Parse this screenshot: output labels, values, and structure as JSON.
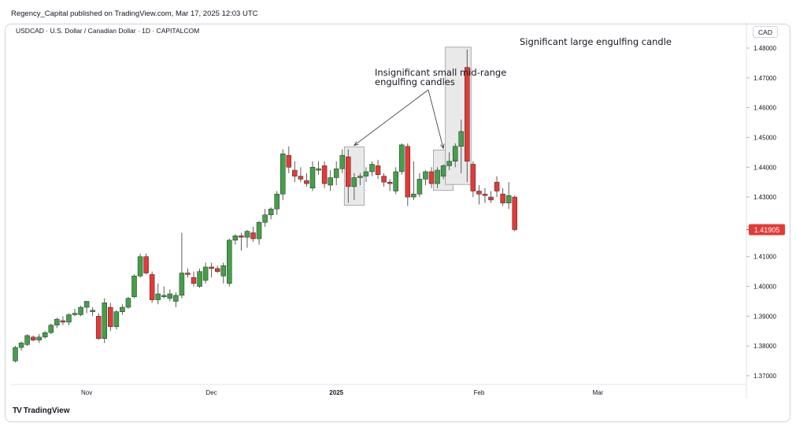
{
  "header": {
    "publisher": "Regency_Capital published on TradingView.com, Mar 17, 2025 12:03 UTC",
    "symbol": "USDCAD · U.S. Dollar / Canadian Dollar · 1D · CAPITALCOM",
    "currency": "CAD"
  },
  "footer": {
    "brand": "TradingView",
    "logo": "TV"
  },
  "colors": {
    "up": "#22ab94",
    "up_fill": "#43a047",
    "down": "#e53935",
    "wick": "#555555"
  },
  "chart_data": {
    "type": "candlestick",
    "title": "USDCAD · U.S. Dollar / Canadian Dollar · 1D · CAPITALCOM",
    "ylim": [
      1.3665,
      1.4835
    ],
    "y_ticks": [
      "1.37000",
      "1.38000",
      "1.39000",
      "1.40000",
      "1.41000",
      "1.42000",
      "1.43000",
      "1.44000",
      "1.45000",
      "1.46000",
      "1.47000",
      "1.48000"
    ],
    "x_labels": [
      {
        "label": "Nov",
        "index": 12
      },
      {
        "label": "Dec",
        "index": 33
      },
      {
        "label": "2025",
        "index": 54
      },
      {
        "label": "Feb",
        "index": 78
      },
      {
        "label": "Mar",
        "index": 98
      }
    ],
    "current_price": "1.41905",
    "current_value": 1.41905,
    "candles": [
      [
        1.375,
        1.38,
        1.3745,
        1.3795
      ],
      [
        1.3795,
        1.3815,
        1.3785,
        1.381
      ],
      [
        1.3805,
        1.384,
        1.38,
        1.3835
      ],
      [
        1.383,
        1.3835,
        1.3815,
        1.382
      ],
      [
        1.382,
        1.384,
        1.381,
        1.383
      ],
      [
        1.383,
        1.385,
        1.3825,
        1.3845
      ],
      [
        1.3845,
        1.3875,
        1.384,
        1.387
      ],
      [
        1.387,
        1.3895,
        1.386,
        1.389
      ],
      [
        1.3885,
        1.39,
        1.387,
        1.388
      ],
      [
        1.388,
        1.391,
        1.387,
        1.3905
      ],
      [
        1.3905,
        1.3925,
        1.39,
        1.391
      ],
      [
        1.3905,
        1.3935,
        1.39,
        1.393
      ],
      [
        1.393,
        1.3945,
        1.391,
        1.395
      ],
      [
        1.3915,
        1.393,
        1.39,
        1.392
      ],
      [
        1.39,
        1.391,
        1.382,
        1.3825
      ],
      [
        1.3825,
        1.396,
        1.381,
        1.3945
      ],
      [
        1.393,
        1.3945,
        1.385,
        1.3865
      ],
      [
        1.3865,
        1.392,
        1.3855,
        1.3915
      ],
      [
        1.3915,
        1.394,
        1.3905,
        1.393
      ],
      [
        1.393,
        1.3965,
        1.3925,
        1.396
      ],
      [
        1.3965,
        1.404,
        1.396,
        1.4035
      ],
      [
        1.4035,
        1.411,
        1.403,
        1.41
      ],
      [
        1.41,
        1.411,
        1.404,
        1.4045
      ],
      [
        1.404,
        1.405,
        1.3945,
        1.3955
      ],
      [
        1.3955,
        1.401,
        1.394,
        1.3975
      ],
      [
        1.3965,
        1.4,
        1.396,
        1.397
      ],
      [
        1.396,
        1.399,
        1.395,
        1.3975
      ],
      [
        1.395,
        1.398,
        1.393,
        1.397
      ],
      [
        1.397,
        1.418,
        1.396,
        1.4045
      ],
      [
        1.4045,
        1.406,
        1.403,
        1.404
      ],
      [
        1.403,
        1.405,
        1.4,
        1.401
      ],
      [
        1.4,
        1.406,
        1.3995,
        1.405
      ],
      [
        1.402,
        1.408,
        1.401,
        1.4065
      ],
      [
        1.4065,
        1.408,
        1.403,
        1.406
      ],
      [
        1.406,
        1.407,
        1.4045,
        1.405
      ],
      [
        1.4035,
        1.408,
        1.401,
        1.407
      ],
      [
        1.401,
        1.416,
        1.4,
        1.4155
      ],
      [
        1.4155,
        1.4175,
        1.414,
        1.417
      ],
      [
        1.417,
        1.418,
        1.412,
        1.4165
      ],
      [
        1.4165,
        1.419,
        1.413,
        1.4185
      ],
      [
        1.418,
        1.42,
        1.415,
        1.416
      ],
      [
        1.416,
        1.422,
        1.414,
        1.4215
      ],
      [
        1.4215,
        1.426,
        1.42,
        1.424
      ],
      [
        1.424,
        1.4265,
        1.4225,
        1.426
      ],
      [
        1.426,
        1.432,
        1.424,
        1.431
      ],
      [
        1.431,
        1.446,
        1.429,
        1.4445
      ],
      [
        1.444,
        1.447,
        1.438,
        1.44
      ],
      [
        1.439,
        1.442,
        1.435,
        1.437
      ],
      [
        1.437,
        1.44,
        1.435,
        1.436
      ],
      [
        1.4355,
        1.438,
        1.4335,
        1.4345
      ],
      [
        1.433,
        1.442,
        1.432,
        1.44
      ],
      [
        1.439,
        1.442,
        1.4375,
        1.4395
      ],
      [
        1.4405,
        1.442,
        1.433,
        1.4345
      ],
      [
        1.434,
        1.439,
        1.432,
        1.4365
      ],
      [
        1.4365,
        1.442,
        1.434,
        1.4395
      ],
      [
        1.4395,
        1.446,
        1.438,
        1.444
      ],
      [
        1.4435,
        1.446,
        1.428,
        1.4335
      ],
      [
        1.4335,
        1.438,
        1.429,
        1.4365
      ],
      [
        1.4365,
        1.438,
        1.434,
        1.437
      ],
      [
        1.437,
        1.44,
        1.435,
        1.4385
      ],
      [
        1.4385,
        1.442,
        1.437,
        1.441
      ],
      [
        1.4405,
        1.4425,
        1.436,
        1.4375
      ],
      [
        1.437,
        1.438,
        1.4335,
        1.435
      ],
      [
        1.435,
        1.436,
        1.432,
        1.4345
      ],
      [
        1.432,
        1.44,
        1.431,
        1.4385
      ],
      [
        1.4385,
        1.448,
        1.4375,
        1.4475
      ],
      [
        1.447,
        1.448,
        1.427,
        1.43
      ],
      [
        1.43,
        1.442,
        1.429,
        1.431
      ],
      [
        1.431,
        1.438,
        1.43,
        1.436
      ],
      [
        1.436,
        1.439,
        1.434,
        1.4385
      ],
      [
        1.4385,
        1.44,
        1.433,
        1.4345
      ],
      [
        1.4345,
        1.44,
        1.433,
        1.439
      ],
      [
        1.437,
        1.441,
        1.436,
        1.4405
      ],
      [
        1.4405,
        1.445,
        1.439,
        1.442
      ],
      [
        1.442,
        1.448,
        1.44,
        1.447
      ],
      [
        1.447,
        1.456,
        1.438,
        1.452
      ],
      [
        1.4735,
        1.4795,
        1.435,
        1.442
      ],
      [
        1.441,
        1.442,
        1.43,
        1.432
      ],
      [
        1.432,
        1.434,
        1.4275,
        1.431
      ],
      [
        1.431,
        1.433,
        1.428,
        1.4305
      ],
      [
        1.43,
        1.432,
        1.428,
        1.429
      ],
      [
        1.435,
        1.437,
        1.43,
        1.432
      ],
      [
        1.431,
        1.433,
        1.427,
        1.428
      ],
      [
        1.428,
        1.435,
        1.426,
        1.4305
      ],
      [
        1.43,
        1.4305,
        1.4185,
        1.41905
      ]
    ],
    "annotations": [
      {
        "text_lines": [
          "Insignificant small mid-range",
          "engulfing candles"
        ],
        "boxes": [
          [
            56,
            58
          ],
          [
            71,
            73
          ]
        ]
      },
      {
        "text_lines": [
          "Significant large engulfing candle"
        ],
        "boxes": [
          [
            73,
            76
          ]
        ]
      }
    ]
  }
}
